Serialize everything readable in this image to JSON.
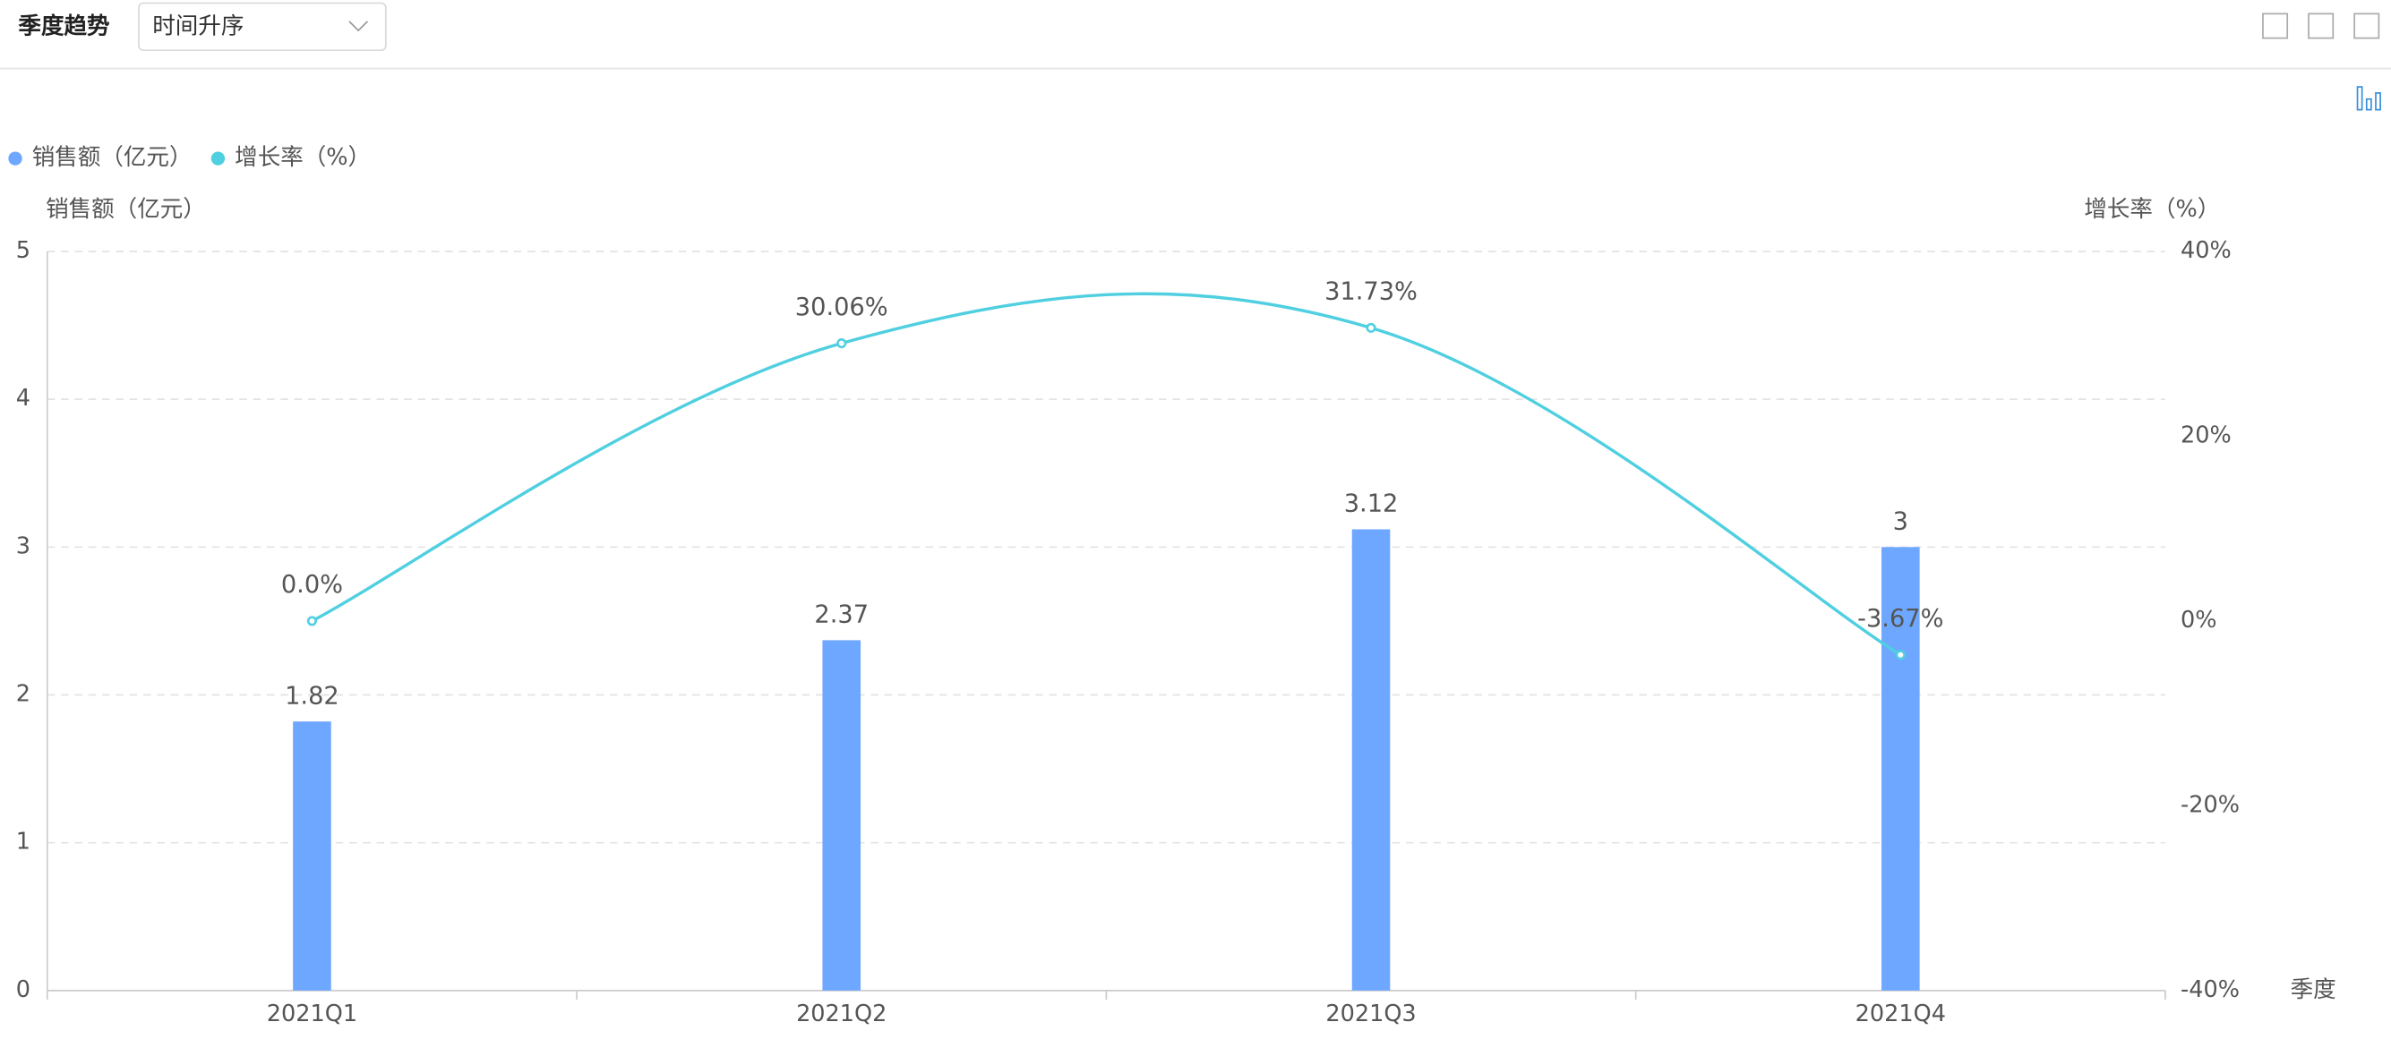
{
  "header": {
    "title": "季度趋势",
    "sort": "时间升序"
  },
  "chart_data": {
    "type": "bar-line",
    "y_label": "销售额（亿元）",
    "y2_label": "增长率（%）",
    "x_label": "季度",
    "categories": [
      "2021Q1",
      "2021Q2",
      "2021Q3",
      "2021Q4"
    ],
    "series": [
      {
        "name": "销售额（亿元）",
        "type": "bar",
        "color": "#6ea7ff",
        "values": [
          1.82,
          2.37,
          3.12,
          3
        ]
      },
      {
        "name": "增长率（%）",
        "type": "line",
        "axis": "y2",
        "color": "#4fcfe0",
        "values": [
          0,
          30.06,
          31.73,
          -3.67
        ],
        "value_labels": [
          "0.0%",
          "30.06%",
          "31.73%",
          "-3.67%"
        ]
      }
    ],
    "ylim": [
      0,
      5
    ],
    "yticks": [
      0,
      1,
      2,
      3,
      4,
      5
    ],
    "y2lim": [
      -40,
      40
    ],
    "y2ticks": [
      {
        "value": -40,
        "label": "-40%"
      },
      {
        "value": -20,
        "label": "-20%"
      },
      {
        "value": 0,
        "label": "0%"
      },
      {
        "value": 20,
        "label": "20%"
      },
      {
        "value": 40,
        "label": "40%"
      }
    ],
    "grid": true
  }
}
